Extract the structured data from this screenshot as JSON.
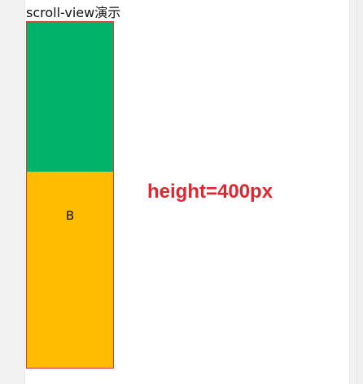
{
  "page": {
    "title": "scroll-view演示",
    "annotation": "height=400px"
  },
  "scroll_view": {
    "items": [
      {
        "label": "",
        "color": "#00b26a"
      },
      {
        "label": "B",
        "color": "#ffbc00"
      }
    ],
    "border_color": "#d83b3b"
  },
  "colors": {
    "annotation": "#e0262e",
    "background": "#ffffff"
  }
}
